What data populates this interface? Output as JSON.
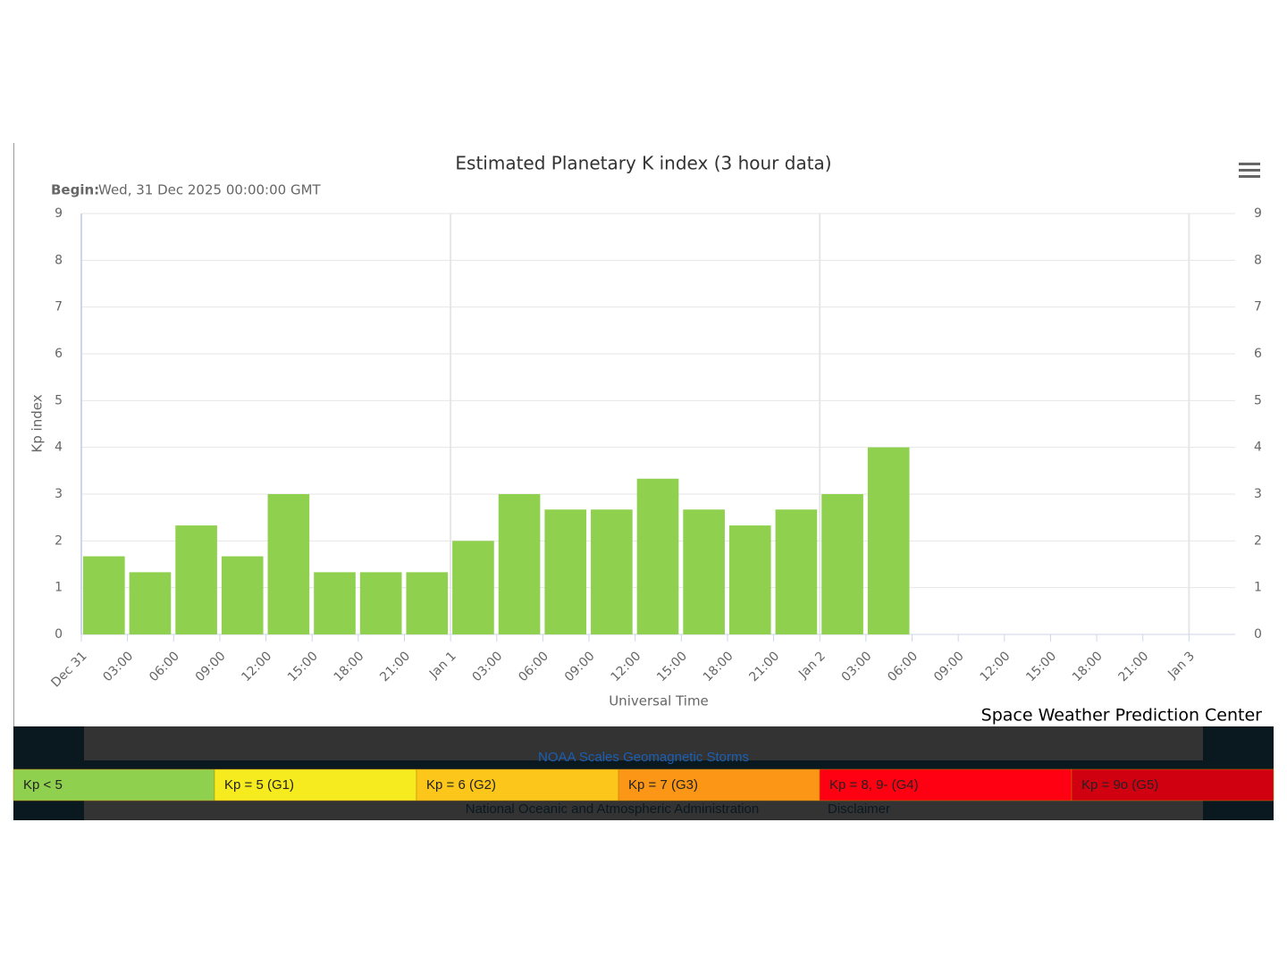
{
  "chart_data": {
    "type": "bar",
    "title": "Estimated Planetary K index (3 hour data)",
    "subtitle_label": "Begin:",
    "subtitle": "Wed, 31 Dec 2025 00:00:00 GMT",
    "ylabel": "Kp index",
    "xlabel": "Universal Time",
    "credit": "Space Weather Prediction Center",
    "color": "#8fd14f",
    "bar_hours": 3,
    "x": [
      0,
      3,
      6,
      9,
      12,
      15,
      18,
      21,
      24,
      27,
      30,
      33,
      36,
      39,
      42,
      45,
      48,
      51
    ],
    "values": [
      1.67,
      1.33,
      2.33,
      1.67,
      3,
      1.33,
      1.33,
      1.33,
      2,
      3,
      2.67,
      2.67,
      3.33,
      2.67,
      2.33,
      2.67,
      3,
      4
    ],
    "xlim": [
      0,
      75
    ],
    "xticks": [
      {
        "value": 0,
        "label": "Dec 31"
      },
      {
        "value": 3,
        "label": "03:00"
      },
      {
        "value": 6,
        "label": "06:00"
      },
      {
        "value": 9,
        "label": "09:00"
      },
      {
        "value": 12,
        "label": "12:00"
      },
      {
        "value": 15,
        "label": "15:00"
      },
      {
        "value": 18,
        "label": "18:00"
      },
      {
        "value": 21,
        "label": "21:00"
      },
      {
        "value": 24,
        "label": "Jan 1"
      },
      {
        "value": 27,
        "label": "03:00"
      },
      {
        "value": 30,
        "label": "06:00"
      },
      {
        "value": 33,
        "label": "09:00"
      },
      {
        "value": 36,
        "label": "12:00"
      },
      {
        "value": 39,
        "label": "15:00"
      },
      {
        "value": 42,
        "label": "18:00"
      },
      {
        "value": 45,
        "label": "21:00"
      },
      {
        "value": 48,
        "label": "Jan 2"
      },
      {
        "value": 51,
        "label": "03:00"
      },
      {
        "value": 54,
        "label": "06:00"
      },
      {
        "value": 57,
        "label": "09:00"
      },
      {
        "value": 60,
        "label": "12:00"
      },
      {
        "value": 63,
        "label": "15:00"
      },
      {
        "value": 66,
        "label": "18:00"
      },
      {
        "value": 69,
        "label": "21:00"
      },
      {
        "value": 72,
        "label": "Jan 3"
      }
    ],
    "ylim": [
      0,
      9
    ],
    "yticks": [
      0,
      1,
      2,
      3,
      4,
      5,
      6,
      7,
      8,
      9
    ],
    "grid": true
  },
  "footer": {
    "link": "NOAA Scales Geomagnetic Storms",
    "agency": "National Oceanic and Atmospheric Administration",
    "disclaimer": "Disclaimer",
    "legend": [
      {
        "label": "Kp < 5",
        "color": "#8fd14f"
      },
      {
        "label": "Kp = 5 (G1)",
        "color": "#f5eb1f"
      },
      {
        "label": "Kp = 6 (G2)",
        "color": "#fcc71a"
      },
      {
        "label": "Kp = 7 (G3)",
        "color": "#fb9617"
      },
      {
        "label": "Kp = 8, 9- (G4)",
        "color": "#fe0011"
      },
      {
        "label": "Kp = 9o (G5)",
        "color": "#d10011"
      }
    ]
  }
}
